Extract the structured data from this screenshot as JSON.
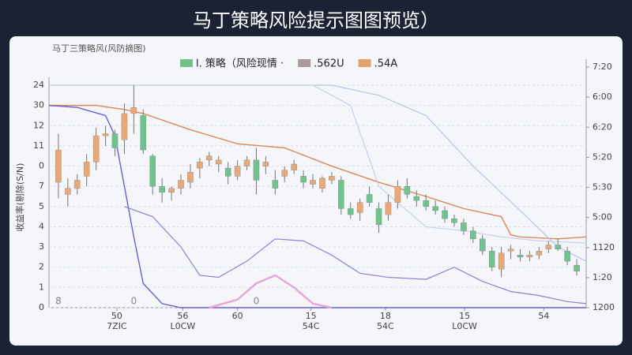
{
  "title": "马丁策略风险提示图图预览）",
  "chart_data": {
    "type": "candlestick",
    "title": "马丁三策略风(风防摘图)",
    "y_label": "收益率(剔除(S/N)",
    "legend": [
      {
        "name": "l. 策略（风险现情 ·",
        "color": "#6fc38e"
      },
      {
        "name": ".562U",
        "color": "#a89a9a"
      },
      {
        "name": ".54A",
        "color": "#e8a070"
      }
    ],
    "xlim": [
      0,
      57
    ],
    "xticks": [
      {
        "value": 7.2,
        "label": "50",
        "sublabel": "7ZIC"
      },
      {
        "value": 14.2,
        "label": "56",
        "sublabel": "L0CW"
      },
      {
        "value": 20,
        "label": "60",
        "sublabel": ""
      },
      {
        "value": 27.8,
        "label": "15",
        "sublabel": "54C"
      },
      {
        "value": 35.7,
        "label": "18",
        "sublabel": "54C"
      },
      {
        "value": 44.1,
        "label": "15",
        "sublabel": "L0CW"
      },
      {
        "value": 52.5,
        "label": "54",
        "sublabel": ""
      }
    ],
    "ylim": [
      0,
      11
    ],
    "yticks": [
      0,
      1,
      2,
      3,
      4,
      5,
      {
        "value": 6,
        "label": "7"
      },
      {
        "value": 7,
        "label": "0"
      },
      {
        "value": 8,
        "label": "11"
      },
      {
        "value": 9,
        "label": "12"
      },
      {
        "value": 10,
        "label": "30"
      },
      {
        "value": 11,
        "label": "24"
      }
    ],
    "y2lim": [
      0,
      8
    ],
    "y2ticks": [
      {
        "value": 0,
        "label": "1200"
      },
      {
        "value": 1,
        "label": "1:20"
      },
      {
        "value": 2,
        "label": "1120"
      },
      {
        "value": 3,
        "label": "5:00"
      },
      {
        "value": 4,
        "label": "5:30"
      },
      {
        "value": 5,
        "label": "5:20"
      },
      {
        "value": 6,
        "label": "6:20"
      },
      {
        "value": 7,
        "label": "6:00"
      },
      {
        "value": 8,
        "label": "7:20"
      }
    ],
    "grid": true,
    "up_color": "#e8a878",
    "down_color": "#6fc38e",
    "candles": {
      "x": [
        1,
        2,
        3,
        4,
        5,
        6,
        7,
        8,
        9,
        10,
        11,
        12,
        13,
        14,
        15,
        16,
        17,
        18,
        19,
        20,
        21,
        22,
        23,
        24,
        25,
        26,
        27,
        28,
        29,
        30,
        31,
        32,
        33,
        34,
        35,
        36,
        37,
        38,
        39,
        40,
        41,
        42,
        43,
        44,
        45,
        46,
        47,
        48,
        49,
        50,
        51,
        52,
        53,
        54,
        55,
        56
      ],
      "open": [
        6.2,
        5.6,
        5.9,
        6.5,
        7.2,
        8.5,
        8.6,
        8.3,
        9.6,
        9.5,
        7.5,
        6.0,
        5.7,
        5.9,
        6.2,
        6.9,
        7.3,
        7.1,
        6.9,
        6.5,
        7.0,
        7.3,
        7.0,
        6.3,
        6.5,
        6.8,
        6.5,
        6.1,
        5.9,
        6.3,
        6.3,
        4.9,
        4.7,
        5.6,
        4.9,
        4.6,
        5.2,
        6.0,
        5.5,
        5.3,
        5.0,
        4.8,
        4.4,
        4.2,
        3.8,
        3.4,
        2.8,
        1.9,
        2.8,
        2.6,
        2.5,
        2.6,
        2.9,
        3.1,
        2.8,
        2.1
      ],
      "high": [
        8.6,
        6.4,
        6.6,
        7.6,
        8.9,
        9.0,
        8.8,
        10.1,
        11.0,
        9.8,
        7.6,
        6.4,
        6.0,
        6.6,
        7.1,
        7.4,
        7.7,
        7.5,
        7.2,
        7.3,
        7.5,
        7.9,
        7.5,
        6.8,
        7.0,
        7.3,
        6.8,
        6.6,
        6.5,
        6.7,
        6.5,
        5.2,
        5.4,
        6.0,
        5.2,
        5.6,
        6.3,
        6.4,
        5.8,
        5.6,
        5.3,
        5.0,
        4.6,
        4.4,
        4.0,
        3.6,
        3.0,
        3.0,
        3.1,
        2.9,
        2.8,
        3.0,
        3.3,
        3.4,
        3.0,
        2.4
      ],
      "low": [
        5.4,
        5.0,
        5.6,
        6.0,
        6.8,
        8.0,
        7.5,
        7.6,
        8.6,
        7.6,
        5.6,
        5.2,
        5.3,
        5.6,
        5.9,
        6.4,
        7.0,
        6.7,
        6.1,
        6.3,
        6.8,
        5.6,
        6.6,
        5.6,
        6.2,
        6.6,
        5.9,
        5.9,
        5.7,
        6.1,
        4.6,
        4.4,
        4.3,
        5.0,
        3.7,
        4.3,
        4.9,
        5.4,
        5.0,
        4.8,
        4.6,
        4.2,
        4.0,
        3.6,
        3.2,
        2.6,
        1.8,
        1.5,
        2.4,
        2.3,
        2.3,
        2.4,
        2.7,
        2.8,
        2.1,
        1.6
      ],
      "close": [
        7.8,
        5.9,
        6.3,
        7.2,
        8.5,
        8.6,
        7.9,
        9.6,
        9.9,
        7.8,
        6.0,
        5.7,
        5.9,
        6.3,
        6.7,
        7.2,
        7.5,
        7.3,
        6.5,
        7.0,
        7.3,
        6.3,
        7.2,
        5.9,
        6.8,
        7.1,
        6.2,
        6.3,
        6.4,
        6.5,
        4.9,
        4.6,
        5.2,
        5.2,
        4.1,
        5.2,
        6.0,
        5.6,
        5.3,
        5.0,
        4.8,
        4.4,
        4.2,
        3.8,
        3.4,
        2.8,
        2.0,
        2.7,
        2.9,
        2.5,
        2.6,
        2.8,
        3.1,
        2.9,
        2.3,
        1.8
      ]
    },
    "series": [
      {
        "name": ".54A",
        "color": "#d9875a",
        "width": 1.4,
        "x": [
          0,
          5,
          8,
          10,
          15,
          20,
          25,
          30,
          35,
          40,
          44,
          48,
          49,
          50,
          54,
          57
        ],
        "values": [
          10,
          10,
          9.8,
          9.6,
          8.8,
          8.1,
          7.9,
          7.0,
          6.2,
          5.5,
          4.9,
          4.5,
          3.6,
          3.5,
          3.4,
          3.5
        ]
      },
      {
        "color": "#6a5fd0",
        "width": 1.4,
        "x": [
          0,
          3,
          6,
          7,
          8,
          9,
          10,
          12,
          14,
          15,
          40,
          48,
          52,
          57
        ],
        "values": [
          10,
          9.9,
          9.5,
          8.5,
          6,
          3.5,
          1.2,
          0.2,
          0,
          0,
          0,
          0,
          0,
          0
        ]
      },
      {
        "color": "#8a7fd8",
        "width": 1.2,
        "x": [
          8,
          11,
          14,
          16,
          18,
          21,
          24,
          27,
          30,
          33,
          36,
          40,
          43,
          46,
          49,
          52,
          55,
          57
        ],
        "values": [
          5.0,
          4.5,
          3.0,
          1.6,
          1.5,
          2.3,
          3.4,
          3.3,
          2.6,
          1.7,
          1.5,
          1.4,
          2.0,
          1.3,
          0.8,
          0.6,
          0.3,
          0.2
        ]
      },
      {
        "color": "#b9c4ec",
        "width": 1.2,
        "x": [
          0,
          10,
          20,
          30,
          35,
          40,
          45,
          50,
          54,
          57
        ],
        "values": [
          11,
          11,
          11,
          11,
          10.5,
          9.5,
          7,
          4.8,
          3.0,
          2.3
        ]
      },
      {
        "color": "#c8d0ee",
        "width": 1.2,
        "x": [
          0,
          10,
          20,
          28,
          32,
          35,
          40,
          44,
          48,
          52,
          57
        ],
        "values": [
          11,
          11,
          11,
          11,
          10,
          6,
          4,
          3.8,
          3.5,
          3.3,
          3.2
        ]
      },
      {
        "color": "#e9a6d8",
        "width": 2.5,
        "x": [
          17,
          20,
          22,
          24,
          26,
          28,
          30
        ],
        "values": [
          0,
          0.4,
          1.2,
          1.6,
          1.0,
          0.2,
          0
        ]
      }
    ],
    "annotations": [
      {
        "text": "8",
        "x": 1
      },
      {
        "text": "0",
        "x": 9
      },
      {
        "text": "0",
        "x": 22
      }
    ]
  }
}
